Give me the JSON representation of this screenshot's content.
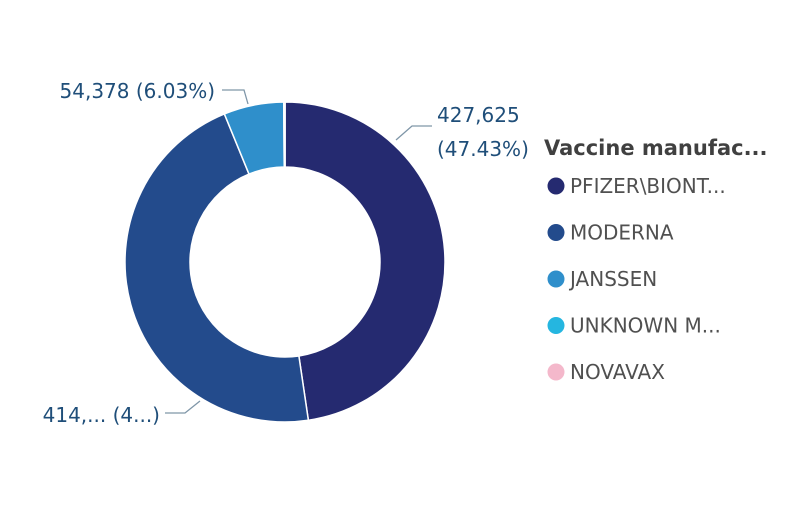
{
  "chart_data": {
    "type": "pie",
    "variant": "donut",
    "title": "",
    "legend": {
      "title": "Vaccine manufac...",
      "placement": "right"
    },
    "categories": [
      "PFIZER\\BIONT...",
      "MODERNA",
      "JANSSEN",
      "UNKNOWN M...",
      "NOVAVAX"
    ],
    "values": [
      427625,
      414000,
      54378,
      1100,
      20
    ],
    "colors": [
      "#252A70",
      "#234B8C",
      "#2F8FCB",
      "#25B6E0",
      "#F4B8CB"
    ],
    "data_labels": [
      {
        "series": "PFIZER\\BIONT...",
        "lines": [
          "427,625",
          "(47.43%)"
        ]
      },
      {
        "series": "MODERNA",
        "lines": [
          "414,... (4...)"
        ]
      },
      {
        "series": "JANSSEN",
        "lines": [
          "54,378 (6.03%)"
        ]
      }
    ]
  }
}
